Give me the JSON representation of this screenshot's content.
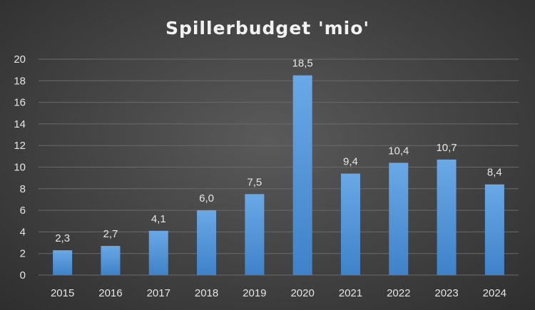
{
  "chart_data": {
    "type": "bar",
    "title": "Spillerbudget 'mio'",
    "xlabel": "",
    "ylabel": "",
    "categories": [
      "2015",
      "2016",
      "2017",
      "2018",
      "2019",
      "2020",
      "2021",
      "2022",
      "2023",
      "2024"
    ],
    "values": [
      2.3,
      2.7,
      4.1,
      6.0,
      7.5,
      18.5,
      9.4,
      10.4,
      10.7,
      8.4
    ],
    "data_labels": [
      "2,3",
      "2,7",
      "4,1",
      "6,0",
      "7,5",
      "18,5",
      "9,4",
      "10,4",
      "10,7",
      "8,4"
    ],
    "ylim": [
      0,
      20
    ],
    "yticks": [
      "0",
      "2",
      "4",
      "6",
      "8",
      "10",
      "12",
      "14",
      "16",
      "18",
      "20"
    ],
    "grid": true,
    "legend": "none",
    "colors": {
      "bar_top": "#6aa8e6",
      "bar_bottom": "#3f82c8",
      "gridline": "#6a6a6a",
      "text": "#e6e6e6"
    }
  }
}
